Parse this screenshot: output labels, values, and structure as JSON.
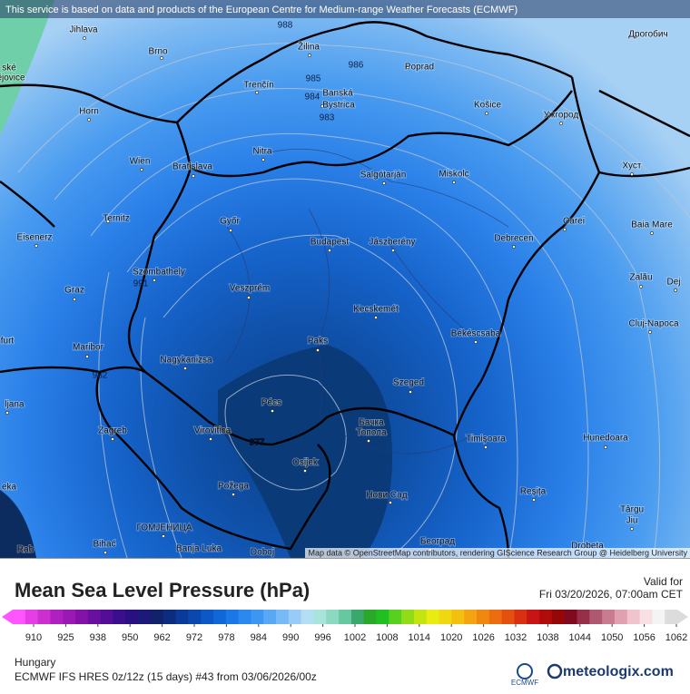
{
  "header": {
    "credit": "This service is based on data and products of the European Centre for Medium-range Weather Forecasts (ECMWF)"
  },
  "map": {
    "cities": [
      "Jihlava",
      "Brno",
      "Žilina",
      "Poprad",
      "Дрогобич",
      "Horn",
      "Trenčín",
      "Banská",
      "Bystrica",
      "Košice",
      "Ужгород",
      "Wien",
      "Bratislava",
      "Nitra",
      "Salgótarján",
      "Miskolc",
      "Хуст",
      "Ternitz",
      "Győr",
      "Carei",
      "Baia Mare",
      "Eisenerz",
      "Budapest",
      "Jászberény",
      "Debrecen",
      "Szombathely",
      "Veszprém",
      "Zalău",
      "Graz",
      "Dej",
      "Kecskemét",
      "Cluj-Napoca",
      "Maribor",
      "Paks",
      "Békéscsaba",
      "Nagykanizsa",
      "Szeged",
      "Pécs",
      "Бачка",
      "Топола",
      "Zagreb",
      "Virovitica",
      "Timișoara",
      "Hunedoara",
      "Osijek",
      "Požega",
      "Нови Сад",
      "Reșița",
      "Târgu",
      "Jiu",
      "ГОМЈЕНИЦА",
      "Bihać",
      "Banja Luka",
      "Doboj",
      "Београд",
      "Drobeta",
      "ljana",
      "furt",
      "ské",
      "ějovice",
      "Rab",
      "eka"
    ],
    "isobar_labels": [
      "988",
      "986",
      "985",
      "984",
      "983",
      "991",
      "982",
      "977"
    ],
    "attribution": "Map data © OpenStreetMap contributors, rendering GIScience Research Group @ Heidelberg University"
  },
  "legend": {
    "title": "Mean Sea Level Pressure (hPa)",
    "valid_label": "Valid for",
    "valid_time": "Fri 03/20/2026, 07:00am CET",
    "ticks": [
      910,
      925,
      938,
      950,
      962,
      972,
      978,
      984,
      990,
      996,
      1002,
      1008,
      1014,
      1020,
      1026,
      1032,
      1038,
      1044,
      1050,
      1056,
      1062
    ],
    "colors": [
      "#ff55ff",
      "#e63ee6",
      "#cc2ed0",
      "#b01fc0",
      "#9a18b4",
      "#8212a8",
      "#6a10a0",
      "#520e96",
      "#3a0e8c",
      "#281080",
      "#1c1a78",
      "#12226a",
      "#0c2c80",
      "#0a3a9a",
      "#0a48b0",
      "#0c58c6",
      "#1068d8",
      "#1a78e6",
      "#2a88ee",
      "#3c96f2",
      "#58a8f4",
      "#78baf6",
      "#98ccf6",
      "#b4def4",
      "#a8e4dc",
      "#8cd8c0",
      "#66c8a0",
      "#3aa86a",
      "#2aa82a",
      "#20c020",
      "#58d020",
      "#90dc18",
      "#c4e410",
      "#e8ec10",
      "#f0d810",
      "#f4c010",
      "#f4a410",
      "#f08810",
      "#ec6c10",
      "#e45010",
      "#d83010",
      "#c81414",
      "#b00c0c",
      "#960808",
      "#800a20",
      "#963048",
      "#b05870",
      "#c87c90",
      "#e0a0b0",
      "#f0c4cc",
      "#f8e0e4",
      "#f4f4f4",
      "#dcdcdc"
    ]
  },
  "footer": {
    "region": "Hungary",
    "model": "ECMWF IFS HRES 0z/12z (15 days) #43 from  03/06/2026/00z",
    "ecmwf": "ECMWF",
    "brand": "meteologix.com"
  }
}
